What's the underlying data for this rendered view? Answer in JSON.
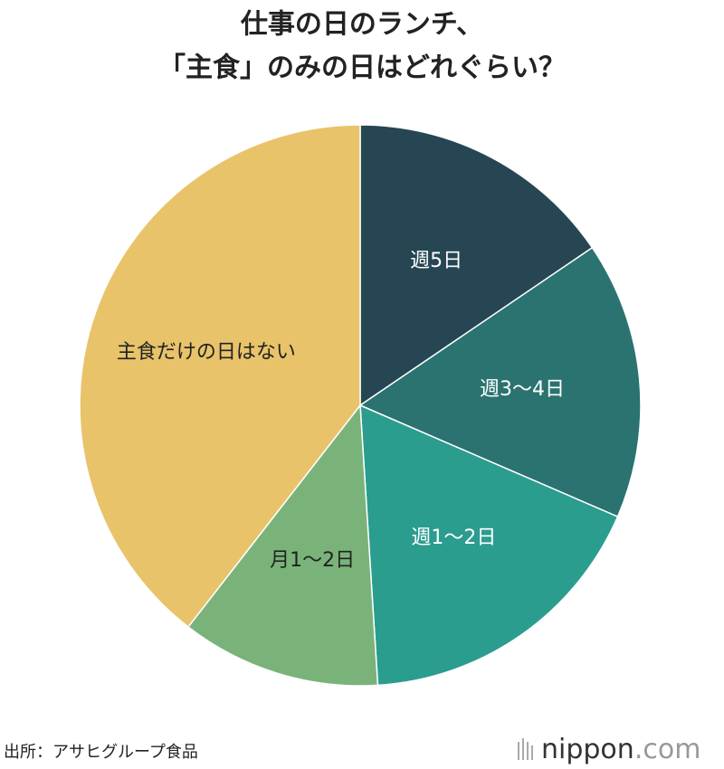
{
  "chart_data": {
    "type": "pie",
    "title": [
      "仕事の日のランチ、",
      "「主食」のみの日はどれぐらい？"
    ],
    "categories": [
      "週5日",
      "週3〜4日",
      "週1〜2日",
      "月1〜2日",
      "主食だけの日はない"
    ],
    "values": [
      15.5,
      16,
      17.5,
      11.5,
      39.5
    ],
    "colors": [
      "#264653",
      "#2a7370",
      "#2a9d8f",
      "#7ab37a",
      "#e8c36a"
    ]
  },
  "footer": {
    "source": "出所：アサヒグループ食品",
    "logo": "nippon",
    "logo_suffix": ".com"
  }
}
